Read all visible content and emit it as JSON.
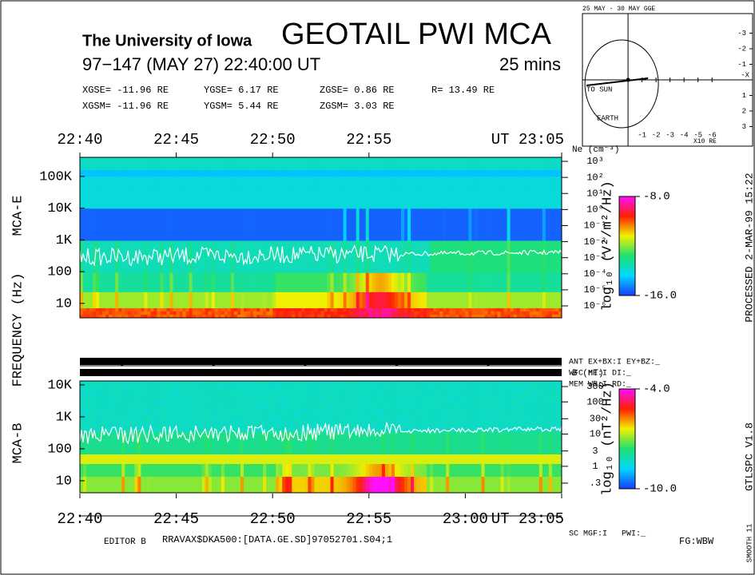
{
  "chart_data": {
    "type": "spectrogram",
    "header": {
      "institution": "The University of Iowa",
      "title": "GEOTAIL PWI MCA",
      "date": "97−147 (MAY 27) 22:40:00 UT",
      "duration": "25 mins"
    },
    "position": [
      [
        "XGSE= -11.96 RE",
        "YGSE= 6.17 RE",
        "ZGSE= 0.86 RE",
        "R= 13.49 RE"
      ],
      [
        "XGSM= -11.96 RE",
        "YGSM= 5.44 RE",
        "ZGSM= 3.03 RE"
      ]
    ],
    "xlim": [
      0,
      25
    ],
    "top_xticks": [
      {
        "value": 0,
        "label": "22:40"
      },
      {
        "value": 5,
        "label": "22:45"
      },
      {
        "value": 10,
        "label": "22:50"
      },
      {
        "value": 15,
        "label": "22:55"
      },
      {
        "value": 25,
        "label": "UT 23:05"
      }
    ],
    "bottom_xticks": [
      {
        "value": 0,
        "label": "22:40"
      },
      {
        "value": 5,
        "label": "22:45"
      },
      {
        "value": 10,
        "label": "22:50"
      },
      {
        "value": 15,
        "label": "22:55"
      },
      {
        "value": 20,
        "label": "23:00"
      },
      {
        "value": 25,
        "label": "UT 23:05"
      }
    ],
    "frequency_label": "FREQUENCY (Hz)",
    "panels": [
      {
        "name": "MCA-E",
        "log_scale": true,
        "ylim": [
          3.5,
          400000
        ],
        "yticks": [
          {
            "value": 100000,
            "label": "100K"
          },
          {
            "value": 10000,
            "label": "10K"
          },
          {
            "value": 1000,
            "label": "1K"
          },
          100,
          10
        ],
        "y2label": "Ne (cm⁻³)",
        "y2lim": [
          1.8e-07,
          1780
        ],
        "y2ticks": [
          {
            "value": 1000,
            "label": "10³"
          },
          {
            "value": 100,
            "label": "10²"
          },
          {
            "value": 10,
            "label": "10¹"
          },
          {
            "value": 1,
            "label": "10⁰"
          },
          {
            "value": 0.1,
            "label": "10⁻¹"
          },
          {
            "value": 0.01,
            "label": "10⁻²"
          },
          {
            "value": 0.001,
            "label": "10⁻³"
          },
          {
            "value": 0.0001,
            "label": "10⁻⁴"
          },
          {
            "value": 1e-05,
            "label": "10⁻⁵"
          },
          {
            "value": 1e-06,
            "label": "10⁻⁶"
          }
        ],
        "colorbar": {
          "label": "log₁₀ (V²/m²/Hz)",
          "lim": [
            -16,
            -8
          ],
          "ticks": [
            {
              "value": -8,
              "label": "-8.0"
            },
            {
              "value": -16,
              "label": "-16.0"
            }
          ]
        }
      },
      {
        "name": "MCA-B",
        "log_scale": true,
        "ylim": [
          4.2,
          13300
        ],
        "yticks": [
          {
            "value": 10000,
            "label": "10K"
          },
          {
            "value": 1000,
            "label": "1K"
          },
          100,
          10
        ],
        "y2label": "B (nT)",
        "y2lim": [
          0.151,
          448
        ],
        "y2ticks": [
          300,
          100,
          30,
          10,
          3,
          1,
          {
            "value": 0.3,
            "label": ".3"
          }
        ],
        "colorbar": {
          "label": "log₁₀ (nT²/Hz)",
          "lim": [
            -10,
            -4
          ],
          "ticks": [
            {
              "value": -4,
              "label": "-4.0"
            },
            {
              "value": -10,
              "label": "-10.0"
            }
          ]
        }
      }
    ],
    "status": [
      "ANT EX+BX:I  EY+BZ:_",
      "WFC ME:I     DI:_",
      "MEM WR:I     RD:_"
    ],
    "bottom_status": "SC MGF:I   PWI:_",
    "footer": {
      "editor": "EDITOR B",
      "file": "RRAVAX$DKA500:[DATA.GE.SD]97052701.S04;1",
      "fg": "FG:WBW"
    },
    "side": {
      "processed": "PROCESSED  2-MAR-99  15:22",
      "version": "GTLSPC  V1.8",
      "smooth": "SMOOTH 11"
    },
    "orbit": {
      "title": "25 MAY - 30 MAY  GGE",
      "sun_label": "TO SUN",
      "earth_label": "EARTH",
      "unit_label": "X10 RE",
      "axis_label": "-X",
      "xlim": [
        3.26,
        -8.9
      ],
      "xticks": [
        -1,
        -2,
        -3,
        -4,
        -5,
        -6
      ],
      "ylim": [
        -4.26,
        4.26
      ],
      "yticks": [
        -3,
        -2,
        -1,
        1,
        2,
        3
      ]
    }
  }
}
